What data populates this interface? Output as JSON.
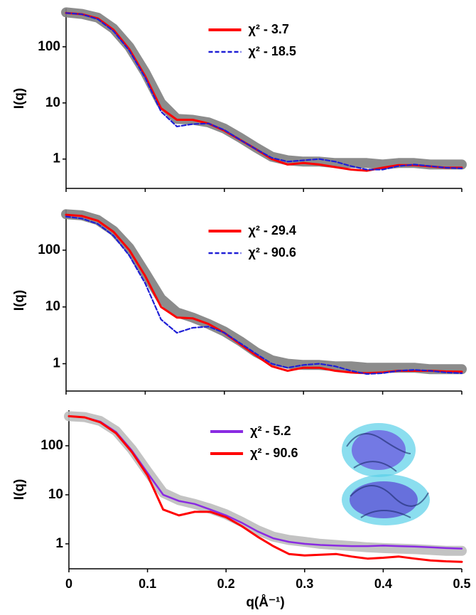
{
  "chart_data": [
    {
      "type": "line",
      "ylabel": "I(q)",
      "log_y": true,
      "legend": "upper center",
      "xtick_labels": false,
      "xlim": [
        0,
        0.5
      ],
      "xticks": [
        0,
        0.1,
        0.2,
        0.3,
        0.4,
        0.5
      ],
      "ylim": [
        0.3,
        480
      ],
      "yticks": [
        1,
        10,
        100
      ],
      "x": [
        0,
        0.02,
        0.04,
        0.06,
        0.08,
        0.1,
        0.12,
        0.14,
        0.16,
        0.18,
        0.2,
        0.22,
        0.24,
        0.26,
        0.28,
        0.3,
        0.32,
        0.34,
        0.36,
        0.38,
        0.4,
        0.42,
        0.44,
        0.46,
        0.48,
        0.5
      ],
      "series": [
        {
          "style": "band",
          "color": "#808080",
          "values": [
            410,
            385,
            330,
            210,
            100,
            35,
            10,
            5.2,
            5,
            4.5,
            3.5,
            2.4,
            1.6,
            1.1,
            0.95,
            0.9,
            0.9,
            0.85,
            0.85,
            0.85,
            0.8,
            0.85,
            0.85,
            0.8,
            0.8,
            0.8
          ]
        },
        {
          "name": "χ² - 3.7",
          "style": "solid",
          "color": "#ff0000",
          "values": [
            400,
            380,
            320,
            200,
            90,
            30,
            8,
            5,
            5,
            4.3,
            3.2,
            2.2,
            1.5,
            1.0,
            0.8,
            0.85,
            0.8,
            0.72,
            0.65,
            0.62,
            0.7,
            0.78,
            0.78,
            0.74,
            0.7,
            0.7
          ]
        },
        {
          "name": "χ² - 18.5",
          "style": "dashed",
          "color": "#1f1fd6",
          "values": [
            400,
            380,
            310,
            190,
            85,
            28,
            7,
            3.8,
            4.2,
            4.3,
            3.3,
            2.2,
            1.5,
            1.05,
            0.9,
            0.95,
            1.0,
            0.9,
            0.75,
            0.65,
            0.65,
            0.75,
            0.8,
            0.75,
            0.7,
            0.68
          ]
        }
      ]
    },
    {
      "type": "line",
      "ylabel": "I(q)",
      "log_y": true,
      "legend": "upper center",
      "xtick_labels": false,
      "xlim": [
        0,
        0.5
      ],
      "xticks": [
        0,
        0.1,
        0.2,
        0.3,
        0.4,
        0.5
      ],
      "ylim": [
        0.33,
        515
      ],
      "yticks": [
        1,
        10,
        100
      ],
      "x": [
        0,
        0.02,
        0.04,
        0.06,
        0.08,
        0.1,
        0.12,
        0.14,
        0.16,
        0.18,
        0.2,
        0.22,
        0.24,
        0.26,
        0.28,
        0.3,
        0.32,
        0.34,
        0.36,
        0.38,
        0.4,
        0.42,
        0.44,
        0.46,
        0.48,
        0.5
      ],
      "series": [
        {
          "style": "band",
          "color": "#808080",
          "values": [
            430,
            410,
            340,
            220,
            110,
            40,
            14,
            8,
            6.5,
            5,
            3.7,
            2.5,
            1.6,
            1.15,
            1.0,
            0.95,
            0.95,
            0.9,
            0.9,
            0.85,
            0.85,
            0.85,
            0.85,
            0.8,
            0.8,
            0.8
          ]
        },
        {
          "name": "χ² - 29.4",
          "style": "solid",
          "color": "#ff0000",
          "values": [
            420,
            400,
            330,
            210,
            100,
            35,
            10,
            6.5,
            6.3,
            5,
            3.5,
            2.2,
            1.4,
            0.9,
            0.75,
            0.85,
            0.85,
            0.75,
            0.7,
            0.68,
            0.7,
            0.75,
            0.75,
            0.75,
            0.73,
            0.72
          ]
        },
        {
          "name": "χ² - 90.6",
          "style": "dashed",
          "color": "#1f1fd6",
          "values": [
            390,
            360,
            290,
            180,
            80,
            26,
            6,
            3.5,
            4.3,
            4.5,
            3.5,
            2.3,
            1.5,
            1.0,
            0.85,
            0.95,
            1.0,
            0.9,
            0.75,
            0.66,
            0.68,
            0.75,
            0.78,
            0.75,
            0.7,
            0.68
          ]
        }
      ]
    },
    {
      "type": "line",
      "ylabel": "I(q)",
      "xlabel": "q(Å⁻¹)",
      "log_y": true,
      "legend": "upper center",
      "xtick_labels": true,
      "xlim": [
        0,
        0.5
      ],
      "xticks": [
        0,
        0.1,
        0.2,
        0.3,
        0.4,
        0.5
      ],
      "ylim": [
        0.31,
        530
      ],
      "yticks": [
        1,
        10,
        100
      ],
      "x": [
        0,
        0.02,
        0.04,
        0.06,
        0.08,
        0.1,
        0.12,
        0.14,
        0.16,
        0.18,
        0.2,
        0.22,
        0.24,
        0.26,
        0.28,
        0.3,
        0.32,
        0.34,
        0.36,
        0.38,
        0.4,
        0.42,
        0.44,
        0.46,
        0.48,
        0.5
      ],
      "series": [
        {
          "style": "band",
          "color": "#bdbdbd",
          "values": [
            400,
            385,
            320,
            200,
            85,
            30,
            11,
            7.8,
            6.5,
            5.2,
            4,
            2.8,
            1.9,
            1.4,
            1.2,
            1.1,
            1.0,
            0.95,
            0.9,
            0.85,
            0.82,
            0.8,
            0.78,
            0.75,
            0.72,
            0.72
          ]
        },
        {
          "name": "χ² - 5.2",
          "style": "solid",
          "color": "#8a2be2",
          "values": [
            400,
            380,
            310,
            190,
            80,
            28,
            10,
            7.5,
            6.5,
            5,
            3.8,
            2.7,
            1.8,
            1.3,
            1.1,
            1.0,
            0.95,
            0.92,
            0.9,
            0.9,
            0.92,
            0.9,
            0.88,
            0.85,
            0.82,
            0.8
          ]
        },
        {
          "name": "χ² - 90.6",
          "style": "solid",
          "color": "#ff0000",
          "values": [
            400,
            380,
            300,
            180,
            75,
            25,
            5,
            3.8,
            4.5,
            4.5,
            3.5,
            2.3,
            1.4,
            0.9,
            0.62,
            0.58,
            0.6,
            0.62,
            0.55,
            0.5,
            0.52,
            0.55,
            0.5,
            0.46,
            0.44,
            0.43
          ]
        }
      ]
    }
  ]
}
